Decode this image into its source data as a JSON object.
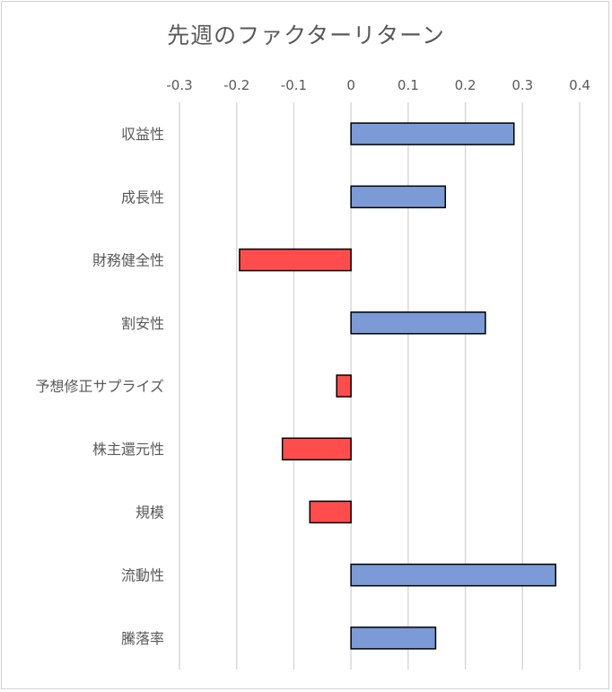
{
  "chart_data": {
    "type": "bar",
    "orientation": "horizontal",
    "title": "先週のファクターリターン",
    "categories": [
      "収益性",
      "成長性",
      "財務健全性",
      "割安性",
      "予想修正サプライズ",
      "株主還元性",
      "規模",
      "流動性",
      "騰落率"
    ],
    "values": [
      0.285,
      0.165,
      -0.195,
      0.235,
      -0.025,
      -0.12,
      -0.072,
      0.358,
      0.148
    ],
    "xlim": [
      -0.3,
      0.4
    ],
    "ticks": [
      -0.3,
      -0.2,
      -0.1,
      0,
      0.1,
      0.2,
      0.3,
      0.4
    ],
    "tick_labels": [
      "-0.3",
      "-0.2",
      "-0.1",
      "0",
      "0.1",
      "0.2",
      "0.3",
      "0.4"
    ],
    "axis_position": "top",
    "grid": true,
    "colors": {
      "positive": "#7b9ad6",
      "negative": "#ff4d4d",
      "grid": "#d9d9d9",
      "text": "#595959"
    }
  }
}
